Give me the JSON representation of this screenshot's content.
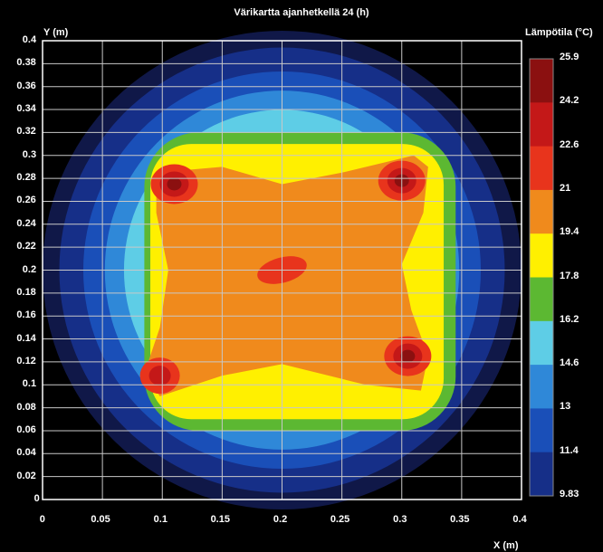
{
  "chart_data": {
    "type": "heatmap",
    "title": "Värikartta ajanhetkellä 24 (h)",
    "xlabel": "X (m)",
    "ylabel": "Y (m)",
    "xlim": [
      0,
      0.4
    ],
    "ylim": [
      0,
      0.4
    ],
    "x_ticks": [
      "0",
      "0.05",
      "0.1",
      "0.15",
      "0.2",
      "0.25",
      "0.3",
      "0.35",
      "0.4"
    ],
    "y_ticks": [
      "0",
      "0.02",
      "0.04",
      "0.06",
      "0.08",
      "0.1",
      "0.12",
      "0.14",
      "0.16",
      "0.18",
      "0.2",
      "0.22",
      "0.24",
      "0.26",
      "0.28",
      "0.3",
      "0.32",
      "0.34",
      "0.36",
      "0.38",
      "0.4"
    ],
    "grid": true,
    "colorbar": {
      "title": "Lämpötila (°C)",
      "levels": [
        "25.9",
        "24.2",
        "22.6",
        "21",
        "19.4",
        "17.8",
        "16.2",
        "14.6",
        "13",
        "11.4",
        "9.83"
      ],
      "colors": [
        "#8b1010",
        "#c41818",
        "#e8341c",
        "#f08a1c",
        "#fff000",
        "#5cb832",
        "#5ecde6",
        "#2f88d8",
        "#1a4fb8",
        "#162f88",
        "#101848"
      ]
    },
    "hot_spots": [
      {
        "x": 0.11,
        "y": 0.275,
        "value": 24.2
      },
      {
        "x": 0.3,
        "y": 0.278,
        "value": 24.2
      },
      {
        "x": 0.098,
        "y": 0.108,
        "value": 22.6
      },
      {
        "x": 0.305,
        "y": 0.125,
        "value": 24.2
      },
      {
        "x": 0.2,
        "y": 0.2,
        "value": 21
      }
    ]
  }
}
